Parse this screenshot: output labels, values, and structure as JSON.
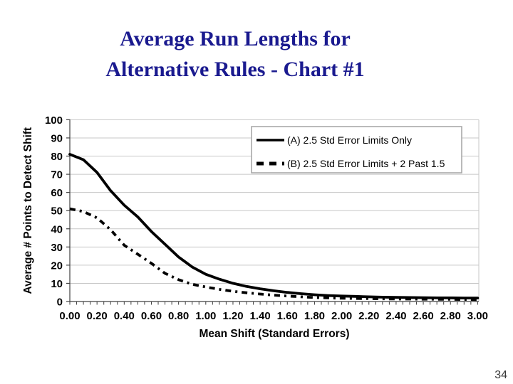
{
  "slide": {
    "title_line1": "Average Run Lengths for",
    "title_line2": "Alternative Rules - Chart #1",
    "page_number": "34"
  },
  "colors": {
    "title": "#1a1a8f",
    "series_line": "#000000",
    "gridline": "#c7c7c7",
    "axis_line": "#404040",
    "legend_border": "#a3a3a3",
    "plot_background": "#ffffff"
  },
  "chart_data": {
    "type": "line",
    "title": "",
    "xlabel": "Mean Shift (Standard Errors)",
    "ylabel": "Average # Points to Detect Shift",
    "xlim": [
      0.0,
      3.0
    ],
    "ylim": [
      0,
      100
    ],
    "grid": "horizontal",
    "legend_position": "top-right-inside",
    "x": [
      0.0,
      0.1,
      0.2,
      0.3,
      0.4,
      0.5,
      0.6,
      0.7,
      0.8,
      0.9,
      1.0,
      1.1,
      1.2,
      1.3,
      1.4,
      1.5,
      1.6,
      1.7,
      1.8,
      1.9,
      2.0,
      2.1,
      2.2,
      2.3,
      2.4,
      2.5,
      2.6,
      2.7,
      2.8,
      2.9,
      3.0
    ],
    "series": [
      {
        "name": "(A) 2.5 Std Error Limits Only",
        "style": "solid",
        "values": [
          81,
          78,
          71,
          61,
          53,
          46.5,
          38.5,
          31.5,
          24.5,
          19,
          15,
          12.3,
          10,
          8.3,
          7,
          5.9,
          5,
          4.3,
          3.7,
          3.3,
          3,
          2.8,
          2.6,
          2.4,
          2.3,
          2.2,
          2.1,
          2,
          2,
          1.9,
          1.9
        ]
      },
      {
        "name": "(B) 2.5 Std Error Limits + 2 Past 1.5",
        "style": "dashed",
        "values": [
          51,
          49.5,
          46,
          39.5,
          31,
          26,
          21,
          15.5,
          12,
          9.5,
          8,
          6.7,
          5.6,
          4.8,
          4.1,
          3.5,
          3,
          2.6,
          2.2,
          2,
          1.8,
          1.7,
          1.6,
          1.5,
          1.4,
          1.35,
          1.3,
          1.25,
          1.2,
          1.15,
          1.1
        ]
      }
    ],
    "xticks_labeled": [
      "0.00",
      "0.20",
      "0.40",
      "0.60",
      "0.80",
      "1.00",
      "1.20",
      "1.40",
      "1.60",
      "1.80",
      "2.00",
      "2.20",
      "2.40",
      "2.60",
      "2.80",
      "3.00"
    ],
    "xtick_label_step": 0.2,
    "minor_tick_step": 0.05,
    "yticks": [
      0,
      10,
      20,
      30,
      40,
      50,
      60,
      70,
      80,
      90,
      100
    ]
  }
}
